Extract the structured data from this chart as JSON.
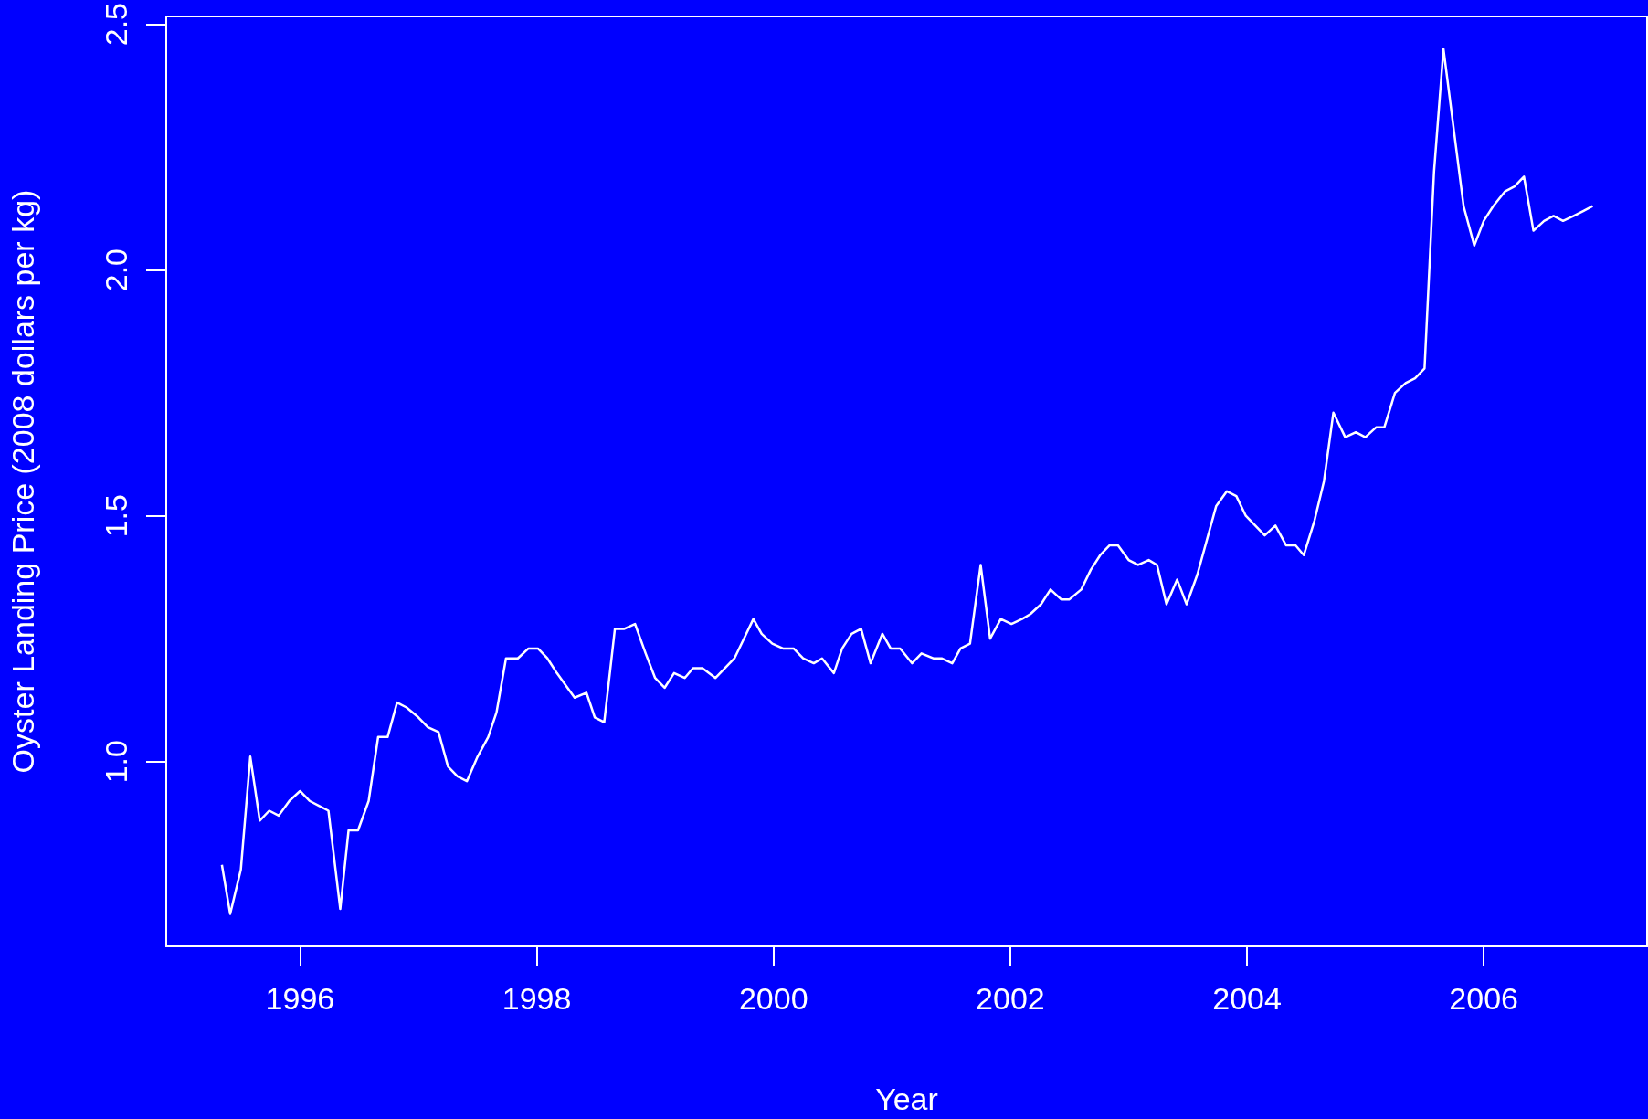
{
  "chart_data": {
    "type": "line",
    "xlabel": "Year",
    "ylabel": "Oyster Landing Price (2008 dollars per kg)",
    "x": [
      1995.34,
      1995.41,
      1995.5,
      1995.58,
      1995.66,
      1995.74,
      1995.82,
      1995.91,
      1996.0,
      1996.08,
      1996.16,
      1996.24,
      1996.34,
      1996.41,
      1996.49,
      1996.58,
      1996.66,
      1996.74,
      1996.82,
      1996.9,
      1997.0,
      1997.08,
      1997.17,
      1997.25,
      1997.33,
      1997.41,
      1997.5,
      1997.59,
      1997.66,
      1997.74,
      1997.84,
      1997.93,
      1998.01,
      1998.09,
      1998.17,
      1998.26,
      1998.32,
      1998.42,
      1998.49,
      1998.57,
      1998.66,
      1998.74,
      1998.83,
      1998.92,
      1999.0,
      1999.08,
      1999.16,
      1999.25,
      1999.32,
      1999.4,
      1999.51,
      1999.59,
      1999.67,
      1999.75,
      1999.83,
      1999.9,
      1999.99,
      2000.08,
      2000.17,
      2000.25,
      2000.34,
      2000.41,
      2000.51,
      2000.58,
      2000.66,
      2000.74,
      2000.82,
      2000.92,
      2000.99,
      2001.07,
      2001.17,
      2001.25,
      2001.35,
      2001.42,
      2001.51,
      2001.58,
      2001.66,
      2001.75,
      2001.83,
      2001.92,
      2002.01,
      2002.1,
      2002.17,
      2002.26,
      2002.34,
      2002.43,
      2002.5,
      2002.6,
      2002.68,
      2002.76,
      2002.84,
      2002.91,
      2003.0,
      2003.08,
      2003.17,
      2003.24,
      2003.32,
      2003.41,
      2003.49,
      2003.58,
      2003.66,
      2003.74,
      2003.83,
      2003.91,
      2003.99,
      2004.07,
      2004.15,
      2004.24,
      2004.33,
      2004.41,
      2004.48,
      2004.57,
      2004.65,
      2004.73,
      2004.83,
      2004.92,
      2005.0,
      2005.09,
      2005.16,
      2005.25,
      2005.34,
      2005.42,
      2005.5,
      2005.58,
      2005.66,
      2005.75,
      2005.83,
      2005.92,
      2006.0,
      2006.08,
      2006.18,
      2006.26,
      2006.34,
      2006.42,
      2006.51,
      2006.59,
      2006.67,
      2006.76,
      2006.84,
      2006.92
    ],
    "series": [
      {
        "color": "#ffffff",
        "values": [
          0.79,
          0.69,
          0.78,
          1.01,
          0.88,
          0.9,
          0.89,
          0.92,
          0.94,
          0.92,
          0.91,
          0.9,
          0.7,
          0.86,
          0.86,
          0.92,
          1.05,
          1.05,
          1.12,
          1.11,
          1.09,
          1.07,
          1.06,
          0.99,
          0.97,
          0.96,
          1.01,
          1.05,
          1.1,
          1.21,
          1.21,
          1.23,
          1.23,
          1.21,
          1.18,
          1.15,
          1.13,
          1.14,
          1.09,
          1.08,
          1.27,
          1.27,
          1.28,
          1.22,
          1.17,
          1.15,
          1.18,
          1.17,
          1.19,
          1.19,
          1.17,
          1.19,
          1.21,
          1.25,
          1.29,
          1.26,
          1.24,
          1.23,
          1.23,
          1.21,
          1.2,
          1.21,
          1.18,
          1.23,
          1.26,
          1.27,
          1.2,
          1.26,
          1.23,
          1.23,
          1.2,
          1.22,
          1.21,
          1.21,
          1.2,
          1.23,
          1.24,
          1.4,
          1.25,
          1.29,
          1.28,
          1.29,
          1.3,
          1.32,
          1.35,
          1.33,
          1.33,
          1.35,
          1.39,
          1.42,
          1.44,
          1.44,
          1.41,
          1.4,
          1.41,
          1.4,
          1.32,
          1.37,
          1.32,
          1.38,
          1.45,
          1.52,
          1.55,
          1.54,
          1.5,
          1.48,
          1.46,
          1.48,
          1.44,
          1.44,
          1.42,
          1.49,
          1.57,
          1.71,
          1.66,
          1.67,
          1.66,
          1.68,
          1.68,
          1.75,
          1.77,
          1.78,
          1.8,
          2.2,
          2.45,
          2.28,
          2.13,
          2.05,
          2.1,
          2.13,
          2.16,
          2.17,
          2.19,
          2.08,
          2.1,
          2.11,
          2.1,
          2.11,
          2.12,
          2.13
        ]
      }
    ],
    "xlim": [
      1994.87,
      2007.38
    ],
    "xticks": [
      1996,
      1998,
      2000,
      2002,
      2004,
      2006
    ],
    "ylim": [
      0.624,
      2.516
    ],
    "yticks": [
      {
        "value": 1,
        "label": "1.0"
      },
      {
        "value": 1.5,
        "label": "1.5"
      },
      {
        "value": 2,
        "label": "2.0"
      },
      {
        "value": 2.5,
        "label": "2.5"
      }
    ],
    "grid": false,
    "marker": "none",
    "line_style": "solid"
  }
}
